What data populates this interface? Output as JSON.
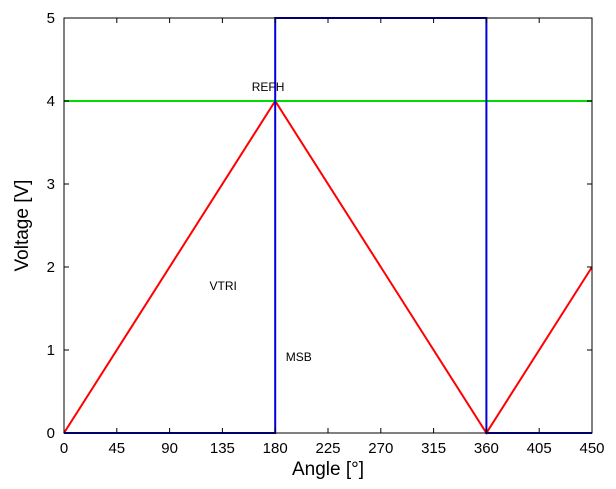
{
  "chart_data": {
    "type": "line",
    "title": "",
    "xlabel": "Angle [°]",
    "ylabel": "Voltage [V]",
    "xlim": [
      0,
      450
    ],
    "ylim": [
      0,
      5
    ],
    "xticks": [
      0,
      45,
      90,
      135,
      180,
      225,
      270,
      315,
      360,
      405,
      450
    ],
    "yticks": [
      0,
      1,
      2,
      3,
      4,
      5
    ],
    "grid": false,
    "series": [
      {
        "name": "VTRI",
        "color": "#ff0000",
        "x": [
          0,
          180,
          360,
          450
        ],
        "y": [
          0,
          4,
          0,
          2
        ]
      },
      {
        "name": "REFH",
        "color": "#00dd00",
        "x": [
          0,
          450
        ],
        "y": [
          4,
          4
        ]
      },
      {
        "name": "MSB",
        "color": "#0000dd",
        "x": [
          0,
          180,
          180,
          360,
          360,
          450
        ],
        "y": [
          0,
          0,
          5,
          5,
          0,
          0
        ]
      }
    ],
    "annotations": [
      {
        "text": "REFH",
        "x": 160,
        "y": 4.12
      },
      {
        "text": "VTRI",
        "x": 124,
        "y": 1.72
      },
      {
        "text": "MSB",
        "x": 189,
        "y": 0.87
      }
    ]
  }
}
